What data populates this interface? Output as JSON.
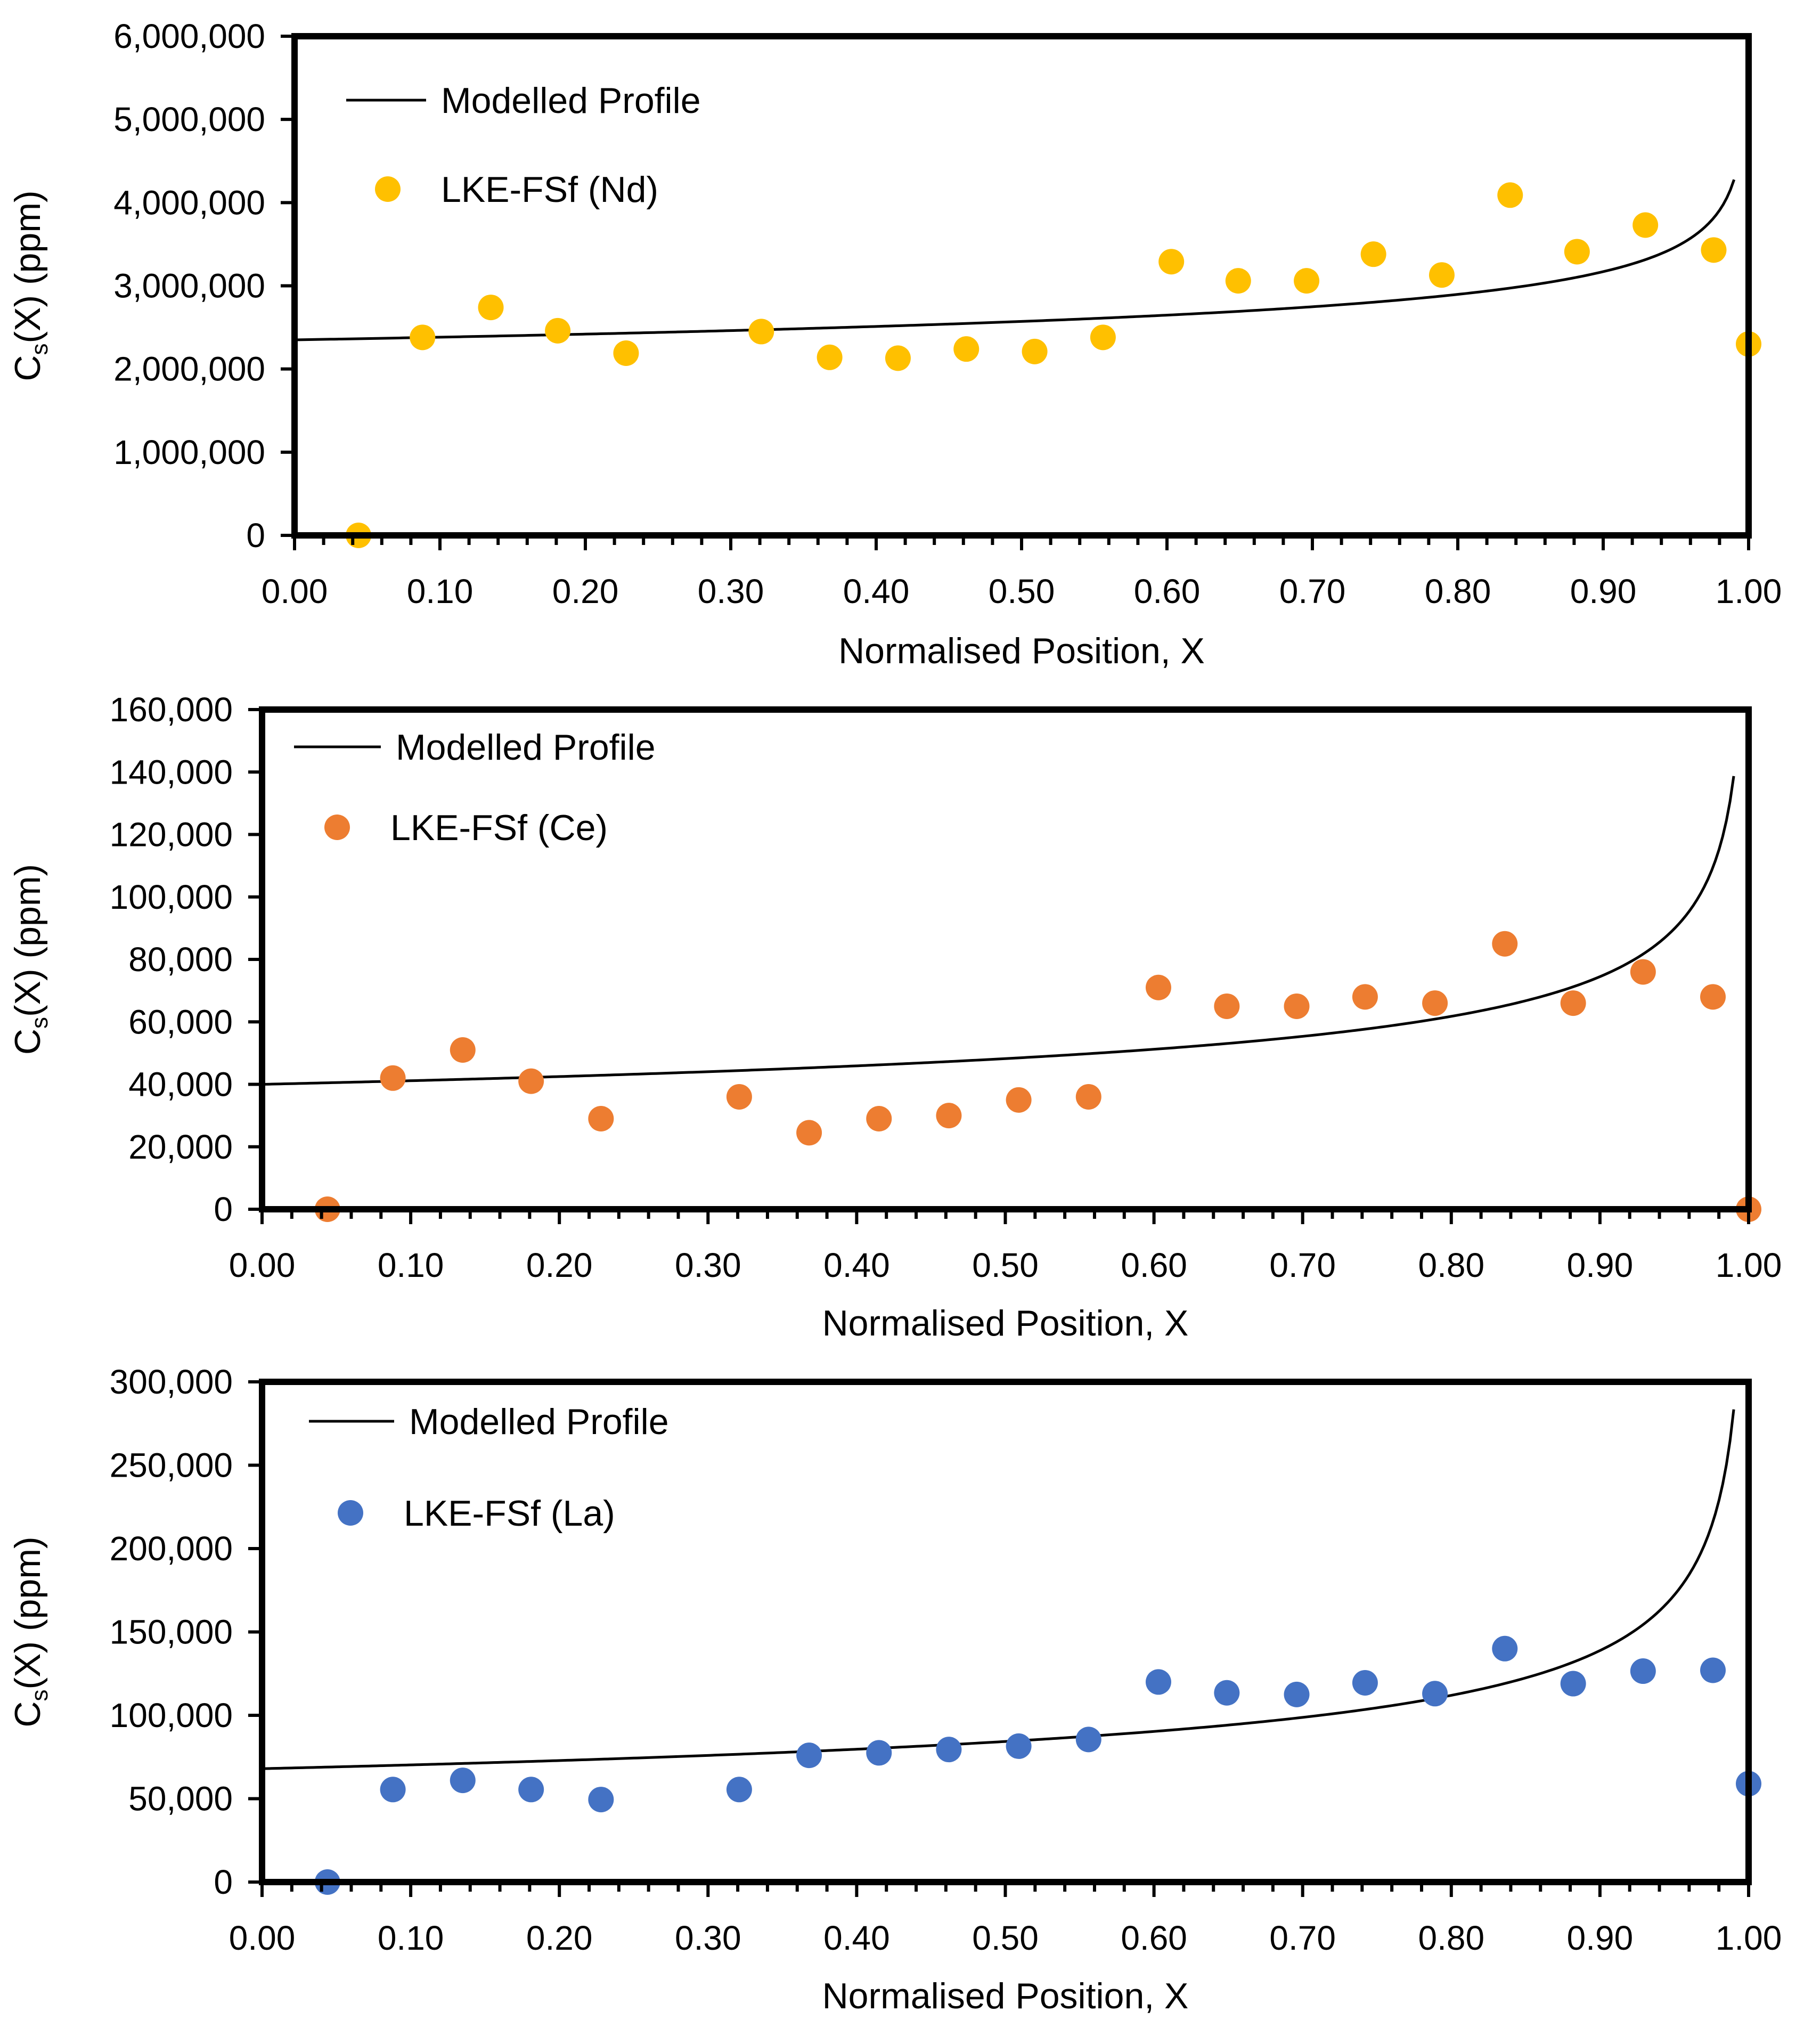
{
  "chart_data": [
    {
      "type": "scatter",
      "title": "",
      "xlabel": "Normalised Position, X",
      "ylabel_main": "C",
      "ylabel_sub": "s",
      "ylabel_rest": "(X) (ppm)",
      "xlim": [
        0,
        1
      ],
      "ylim": [
        0,
        6000000
      ],
      "x_ticks": [
        "0.00",
        "0.10",
        "0.20",
        "0.30",
        "0.40",
        "0.50",
        "0.60",
        "0.70",
        "0.80",
        "0.90",
        "1.00"
      ],
      "y_ticks": [
        "0",
        "1,000,000",
        "2,000,000",
        "3,000,000",
        "4,000,000",
        "5,000,000",
        "6,000,000"
      ],
      "grid": false,
      "legend_position": "top-left",
      "model": {
        "name": "Modelled Profile",
        "c0": 2350000,
        "k": 0.87,
        "x_max": 0.99,
        "color": "#000000"
      },
      "series": [
        {
          "name": "LKE-FSf (Nd)",
          "color": "#FFC000",
          "x": [
            0.044,
            0.088,
            0.135,
            0.181,
            0.228,
            0.321,
            0.368,
            0.415,
            0.462,
            0.509,
            0.556,
            0.603,
            0.649,
            0.696,
            0.742,
            0.789,
            0.836,
            0.882,
            0.929,
            0.976,
            1.0
          ],
          "y": [
            0,
            2380000,
            2740000,
            2460000,
            2190000,
            2450000,
            2140000,
            2130000,
            2240000,
            2210000,
            2380000,
            3290000,
            3060000,
            3060000,
            3380000,
            3130000,
            4090000,
            3410000,
            3730000,
            3430000,
            2300000
          ]
        }
      ]
    },
    {
      "type": "scatter",
      "title": "",
      "xlabel": "Normalised Position, X",
      "ylabel_main": "C",
      "ylabel_sub": "s",
      "ylabel_rest": "(X) (ppm)",
      "xlim": [
        0,
        1
      ],
      "ylim": [
        0,
        160000
      ],
      "x_ticks": [
        "0.00",
        "0.10",
        "0.20",
        "0.30",
        "0.40",
        "0.50",
        "0.60",
        "0.70",
        "0.80",
        "0.90",
        "1.00"
      ],
      "y_ticks": [
        "0",
        "20,000",
        "40,000",
        "60,000",
        "80,000",
        "100,000",
        "120,000",
        "140,000",
        "160,000"
      ],
      "grid": false,
      "legend_position": "top-left",
      "model": {
        "name": "Modelled Profile",
        "c0": 40000,
        "k": 0.73,
        "x_max": 0.99,
        "color": "#000000"
      },
      "series": [
        {
          "name": "LKE-FSf (Ce)",
          "color": "#ED7D31",
          "x": [
            0.044,
            0.088,
            0.135,
            0.181,
            0.228,
            0.321,
            0.368,
            0.415,
            0.462,
            0.509,
            0.556,
            0.603,
            0.649,
            0.696,
            0.742,
            0.789,
            0.836,
            0.882,
            0.929,
            0.976,
            1.0
          ],
          "y": [
            0,
            42000,
            51000,
            41000,
            29000,
            36000,
            24500,
            29000,
            30000,
            35000,
            36000,
            71000,
            65000,
            65000,
            68000,
            66000,
            85000,
            66000,
            76000,
            68000,
            0
          ]
        }
      ]
    },
    {
      "type": "scatter",
      "title": "",
      "xlabel": "Normalised Position, X",
      "ylabel_main": "C",
      "ylabel_sub": "s",
      "ylabel_rest": "(X) (ppm)",
      "xlim": [
        0,
        1
      ],
      "ylim": [
        0,
        300000
      ],
      "x_ticks": [
        "0.00",
        "0.10",
        "0.20",
        "0.30",
        "0.40",
        "0.50",
        "0.60",
        "0.70",
        "0.80",
        "0.90",
        "1.00"
      ],
      "y_ticks": [
        "0",
        "50,000",
        "100,000",
        "150,000",
        "200,000",
        "250,000",
        "300,000"
      ],
      "grid": false,
      "legend_position": "top-left",
      "model": {
        "name": "Modelled Profile",
        "c0": 68000,
        "k": 0.69,
        "x_max": 0.99,
        "color": "#000000"
      },
      "series": [
        {
          "name": "LKE-FSf (La)",
          "color": "#4472C4",
          "x": [
            0.044,
            0.088,
            0.135,
            0.181,
            0.228,
            0.321,
            0.368,
            0.415,
            0.462,
            0.509,
            0.556,
            0.603,
            0.649,
            0.696,
            0.742,
            0.789,
            0.836,
            0.882,
            0.929,
            0.976,
            1.0
          ],
          "y": [
            0,
            55500,
            61000,
            55500,
            49500,
            55500,
            76000,
            77500,
            79500,
            81500,
            85500,
            120000,
            113500,
            112500,
            119500,
            113000,
            140000,
            119000,
            126500,
            127000,
            59000
          ]
        }
      ]
    }
  ]
}
